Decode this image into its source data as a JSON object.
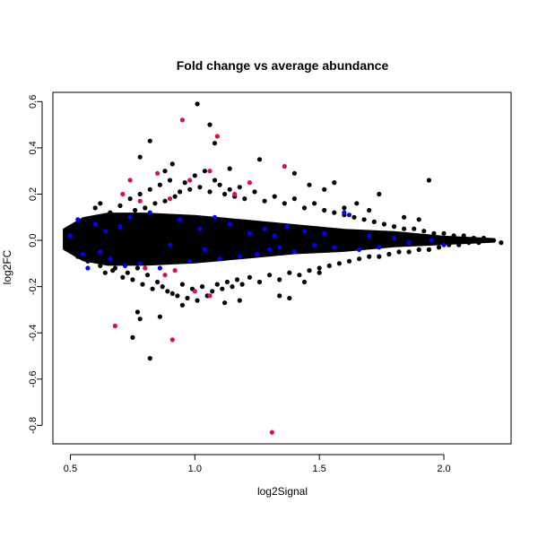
{
  "chart_data": {
    "type": "scatter",
    "title": "Fold change vs average abundance",
    "xlabel": "log2Signal",
    "ylabel": "log2FC",
    "xlim": [
      0.43,
      2.27
    ],
    "ylim": [
      -0.88,
      0.64
    ],
    "xticks": [
      0.5,
      1.0,
      1.5,
      2.0
    ],
    "xtick_labels": [
      "0.5",
      "1.0",
      "1.5",
      "2.0"
    ],
    "yticks": [
      -0.8,
      -0.6,
      -0.4,
      -0.2,
      0.0,
      0.2,
      0.4,
      0.6
    ],
    "ytick_labels": [
      "-0.8",
      "-0.6",
      "-0.4",
      "-0.2",
      "0.0",
      "0.2",
      "0.4",
      "0.6"
    ],
    "grid": false,
    "legend": "none",
    "series": [
      {
        "color": "#000000",
        "points": [
          [
            0.48,
            0.02
          ],
          [
            0.49,
            -0.03
          ],
          [
            0.5,
            0.04
          ],
          [
            0.51,
            -0.05
          ],
          [
            0.52,
            0.06
          ],
          [
            0.53,
            -0.07
          ],
          [
            0.54,
            0.03
          ],
          [
            0.55,
            -0.04
          ],
          [
            0.56,
            0.08
          ],
          [
            0.57,
            -0.09
          ],
          [
            0.58,
            0.05
          ],
          [
            0.6,
            -0.06
          ],
          [
            0.61,
            0.1
          ],
          [
            0.62,
            -0.11
          ],
          [
            0.63,
            0.07
          ],
          [
            0.65,
            -0.08
          ],
          [
            0.66,
            0.12
          ],
          [
            0.67,
            -0.13
          ],
          [
            0.68,
            0.09
          ],
          [
            0.69,
            -0.1
          ],
          [
            0.7,
            0.15
          ],
          [
            0.71,
            -0.16
          ],
          [
            0.72,
            0.11
          ],
          [
            0.73,
            -0.14
          ],
          [
            0.74,
            0.18
          ],
          [
            0.75,
            -0.17
          ],
          [
            0.76,
            0.13
          ],
          [
            0.77,
            -0.12
          ],
          [
            0.78,
            0.2
          ],
          [
            0.79,
            -0.19
          ],
          [
            0.8,
            0.14
          ],
          [
            0.81,
            -0.15
          ],
          [
            0.82,
            0.22
          ],
          [
            0.83,
            -0.21
          ],
          [
            0.84,
            0.16
          ],
          [
            0.85,
            -0.18
          ],
          [
            0.86,
            0.24
          ],
          [
            0.87,
            -0.2
          ],
          [
            0.88,
            0.17
          ],
          [
            0.89,
            -0.22
          ],
          [
            0.9,
            0.26
          ],
          [
            0.91,
            -0.23
          ],
          [
            0.92,
            0.19
          ],
          [
            0.93,
            -0.24
          ],
          [
            0.94,
            0.21
          ],
          [
            0.95,
            -0.19
          ],
          [
            0.96,
            0.25
          ],
          [
            0.97,
            -0.25
          ],
          [
            0.98,
            0.22
          ],
          [
            0.99,
            -0.21
          ],
          [
            1.0,
            0.28
          ],
          [
            1.01,
            -0.26
          ],
          [
            1.02,
            0.23
          ],
          [
            1.03,
            -0.2
          ],
          [
            1.04,
            0.3
          ],
          [
            1.05,
            -0.24
          ],
          [
            1.06,
            0.21
          ],
          [
            1.07,
            -0.22
          ],
          [
            1.08,
            0.26
          ],
          [
            1.09,
            -0.19
          ],
          [
            1.1,
            0.24
          ],
          [
            1.11,
            -0.21
          ],
          [
            1.12,
            0.2
          ],
          [
            1.13,
            -0.18
          ],
          [
            1.14,
            0.22
          ],
          [
            1.15,
            -0.2
          ],
          [
            1.16,
            0.19
          ],
          [
            1.17,
            -0.17
          ],
          [
            1.18,
            0.23
          ],
          [
            1.19,
            -0.19
          ],
          [
            1.2,
            0.18
          ],
          [
            1.22,
            -0.16
          ],
          [
            1.24,
            0.21
          ],
          [
            1.26,
            -0.18
          ],
          [
            1.28,
            0.17
          ],
          [
            1.3,
            -0.15
          ],
          [
            1.32,
            0.19
          ],
          [
            1.34,
            -0.17
          ],
          [
            1.36,
            0.16
          ],
          [
            1.38,
            -0.14
          ],
          [
            1.4,
            0.18
          ],
          [
            1.42,
            -0.15
          ],
          [
            1.44,
            0.14
          ],
          [
            1.46,
            -0.13
          ],
          [
            1.48,
            0.16
          ],
          [
            1.5,
            -0.12
          ],
          [
            1.52,
            0.13
          ],
          [
            1.54,
            -0.11
          ],
          [
            1.56,
            0.12
          ],
          [
            1.58,
            -0.1
          ],
          [
            1.6,
            0.11
          ],
          [
            1.62,
            -0.09
          ],
          [
            1.64,
            0.1
          ],
          [
            1.66,
            -0.08
          ],
          [
            1.68,
            0.09
          ],
          [
            1.7,
            -0.07
          ],
          [
            1.72,
            0.08
          ],
          [
            1.74,
            -0.07
          ],
          [
            1.76,
            0.07
          ],
          [
            1.78,
            -0.06
          ],
          [
            1.8,
            0.06
          ],
          [
            1.82,
            -0.05
          ],
          [
            1.84,
            0.05
          ],
          [
            1.86,
            -0.05
          ],
          [
            1.88,
            0.05
          ],
          [
            1.9,
            -0.04
          ],
          [
            1.92,
            0.04
          ],
          [
            1.94,
            -0.04
          ],
          [
            1.96,
            0.03
          ],
          [
            1.98,
            -0.03
          ],
          [
            2.0,
            0.03
          ],
          [
            2.02,
            -0.02
          ],
          [
            2.04,
            0.02
          ],
          [
            2.06,
            -0.02
          ],
          [
            2.08,
            0.02
          ],
          [
            2.1,
            -0.01
          ],
          [
            2.12,
            0.01
          ],
          [
            2.14,
            -0.01
          ],
          [
            2.16,
            0.01
          ],
          [
            2.18,
            0.0
          ],
          [
            2.2,
            0.0
          ],
          [
            2.23,
            -0.01
          ],
          [
            1.01,
            0.59
          ],
          [
            0.82,
            0.43
          ],
          [
            1.06,
            0.5
          ],
          [
            1.08,
            0.42
          ],
          [
            0.91,
            0.33
          ],
          [
            1.26,
            0.35
          ],
          [
            0.78,
            0.36
          ],
          [
            0.75,
            -0.42
          ],
          [
            0.82,
            -0.51
          ],
          [
            0.77,
            -0.31
          ],
          [
            0.78,
            -0.34
          ],
          [
            0.86,
            -0.33
          ],
          [
            0.95,
            -0.28
          ],
          [
            1.12,
            -0.27
          ],
          [
            1.18,
            -0.26
          ],
          [
            1.34,
            -0.24
          ],
          [
            1.38,
            -0.25
          ],
          [
            1.44,
            -0.18
          ],
          [
            1.5,
            -0.14
          ],
          [
            1.65,
            0.16
          ],
          [
            1.74,
            0.2
          ],
          [
            1.94,
            0.26
          ],
          [
            1.4,
            0.29
          ],
          [
            1.46,
            0.24
          ],
          [
            1.6,
            0.14
          ],
          [
            1.7,
            0.13
          ],
          [
            1.84,
            0.1
          ],
          [
            1.9,
            0.09
          ],
          [
            1.52,
            0.22
          ],
          [
            1.56,
            0.25
          ],
          [
            0.68,
            -0.12
          ],
          [
            0.64,
            -0.14
          ],
          [
            0.6,
            0.14
          ],
          [
            0.62,
            0.16
          ],
          [
            0.88,
            0.3
          ],
          [
            1.14,
            0.31
          ]
        ]
      },
      {
        "color": "#0000ff",
        "points": [
          [
            0.5,
            0.02
          ],
          [
            0.53,
            0.09
          ],
          [
            0.55,
            -0.06
          ],
          [
            0.57,
            -0.12
          ],
          [
            0.6,
            0.07
          ],
          [
            0.62,
            -0.05
          ],
          [
            0.64,
            0.04
          ],
          [
            0.66,
            -0.08
          ],
          [
            0.7,
            0.06
          ],
          [
            0.72,
            -0.11
          ],
          [
            0.74,
            0.1
          ],
          [
            0.78,
            -0.1
          ],
          [
            0.82,
            0.12
          ],
          [
            0.86,
            -0.12
          ],
          [
            0.9,
            -0.02
          ],
          [
            0.94,
            0.09
          ],
          [
            0.98,
            -0.09
          ],
          [
            1.02,
            0.05
          ],
          [
            1.04,
            -0.04
          ],
          [
            1.08,
            0.1
          ],
          [
            1.1,
            -0.08
          ],
          [
            1.14,
            0.07
          ],
          [
            1.18,
            -0.07
          ],
          [
            1.22,
            0.03
          ],
          [
            1.25,
            -0.06
          ],
          [
            1.28,
            0.05
          ],
          [
            1.3,
            -0.04
          ],
          [
            1.32,
            0.02
          ],
          [
            1.34,
            -0.03
          ],
          [
            1.37,
            0.06
          ],
          [
            1.4,
            -0.05
          ],
          [
            1.44,
            0.04
          ],
          [
            1.48,
            -0.02
          ],
          [
            1.52,
            0.03
          ],
          [
            1.56,
            -0.03
          ],
          [
            1.6,
            0.12
          ],
          [
            1.62,
            0.11
          ],
          [
            1.66,
            -0.04
          ],
          [
            1.7,
            0.02
          ],
          [
            1.74,
            -0.03
          ],
          [
            1.8,
            0.01
          ],
          [
            1.86,
            -0.01
          ],
          [
            1.95,
            0.0
          ],
          [
            2.0,
            -0.02
          ]
        ]
      },
      {
        "color": "#e0103c",
        "points": [
          [
            0.95,
            0.52
          ],
          [
            1.09,
            0.45
          ],
          [
            1.36,
            0.32
          ],
          [
            1.31,
            -0.83
          ],
          [
            0.91,
            -0.43
          ],
          [
            0.68,
            -0.37
          ],
          [
            0.71,
            0.2
          ],
          [
            0.74,
            0.26
          ],
          [
            0.85,
            0.29
          ],
          [
            0.98,
            0.26
          ],
          [
            1.06,
            0.3
          ],
          [
            1.22,
            0.25
          ],
          [
            0.88,
            -0.15
          ],
          [
            0.92,
            -0.13
          ],
          [
            1.0,
            -0.22
          ],
          [
            1.06,
            -0.24
          ],
          [
            0.78,
            0.17
          ],
          [
            0.8,
            -0.12
          ],
          [
            0.9,
            0.18
          ],
          [
            1.16,
            0.2
          ]
        ]
      }
    ],
    "dense_band": {
      "color": "#000000",
      "upper": [
        [
          0.47,
          0.05
        ],
        [
          0.55,
          0.1
        ],
        [
          0.65,
          0.12
        ],
        [
          0.8,
          0.12
        ],
        [
          1.0,
          0.11
        ],
        [
          1.2,
          0.09
        ],
        [
          1.4,
          0.07
        ],
        [
          1.6,
          0.05
        ],
        [
          1.8,
          0.04
        ],
        [
          2.0,
          0.02
        ],
        [
          2.2,
          0.01
        ]
      ],
      "lower": [
        [
          2.2,
          -0.01
        ],
        [
          2.0,
          -0.02
        ],
        [
          1.8,
          -0.03
        ],
        [
          1.6,
          -0.05
        ],
        [
          1.4,
          -0.06
        ],
        [
          1.2,
          -0.08
        ],
        [
          1.0,
          -0.1
        ],
        [
          0.8,
          -0.11
        ],
        [
          0.65,
          -0.11
        ],
        [
          0.55,
          -0.09
        ],
        [
          0.47,
          -0.04
        ]
      ]
    }
  }
}
